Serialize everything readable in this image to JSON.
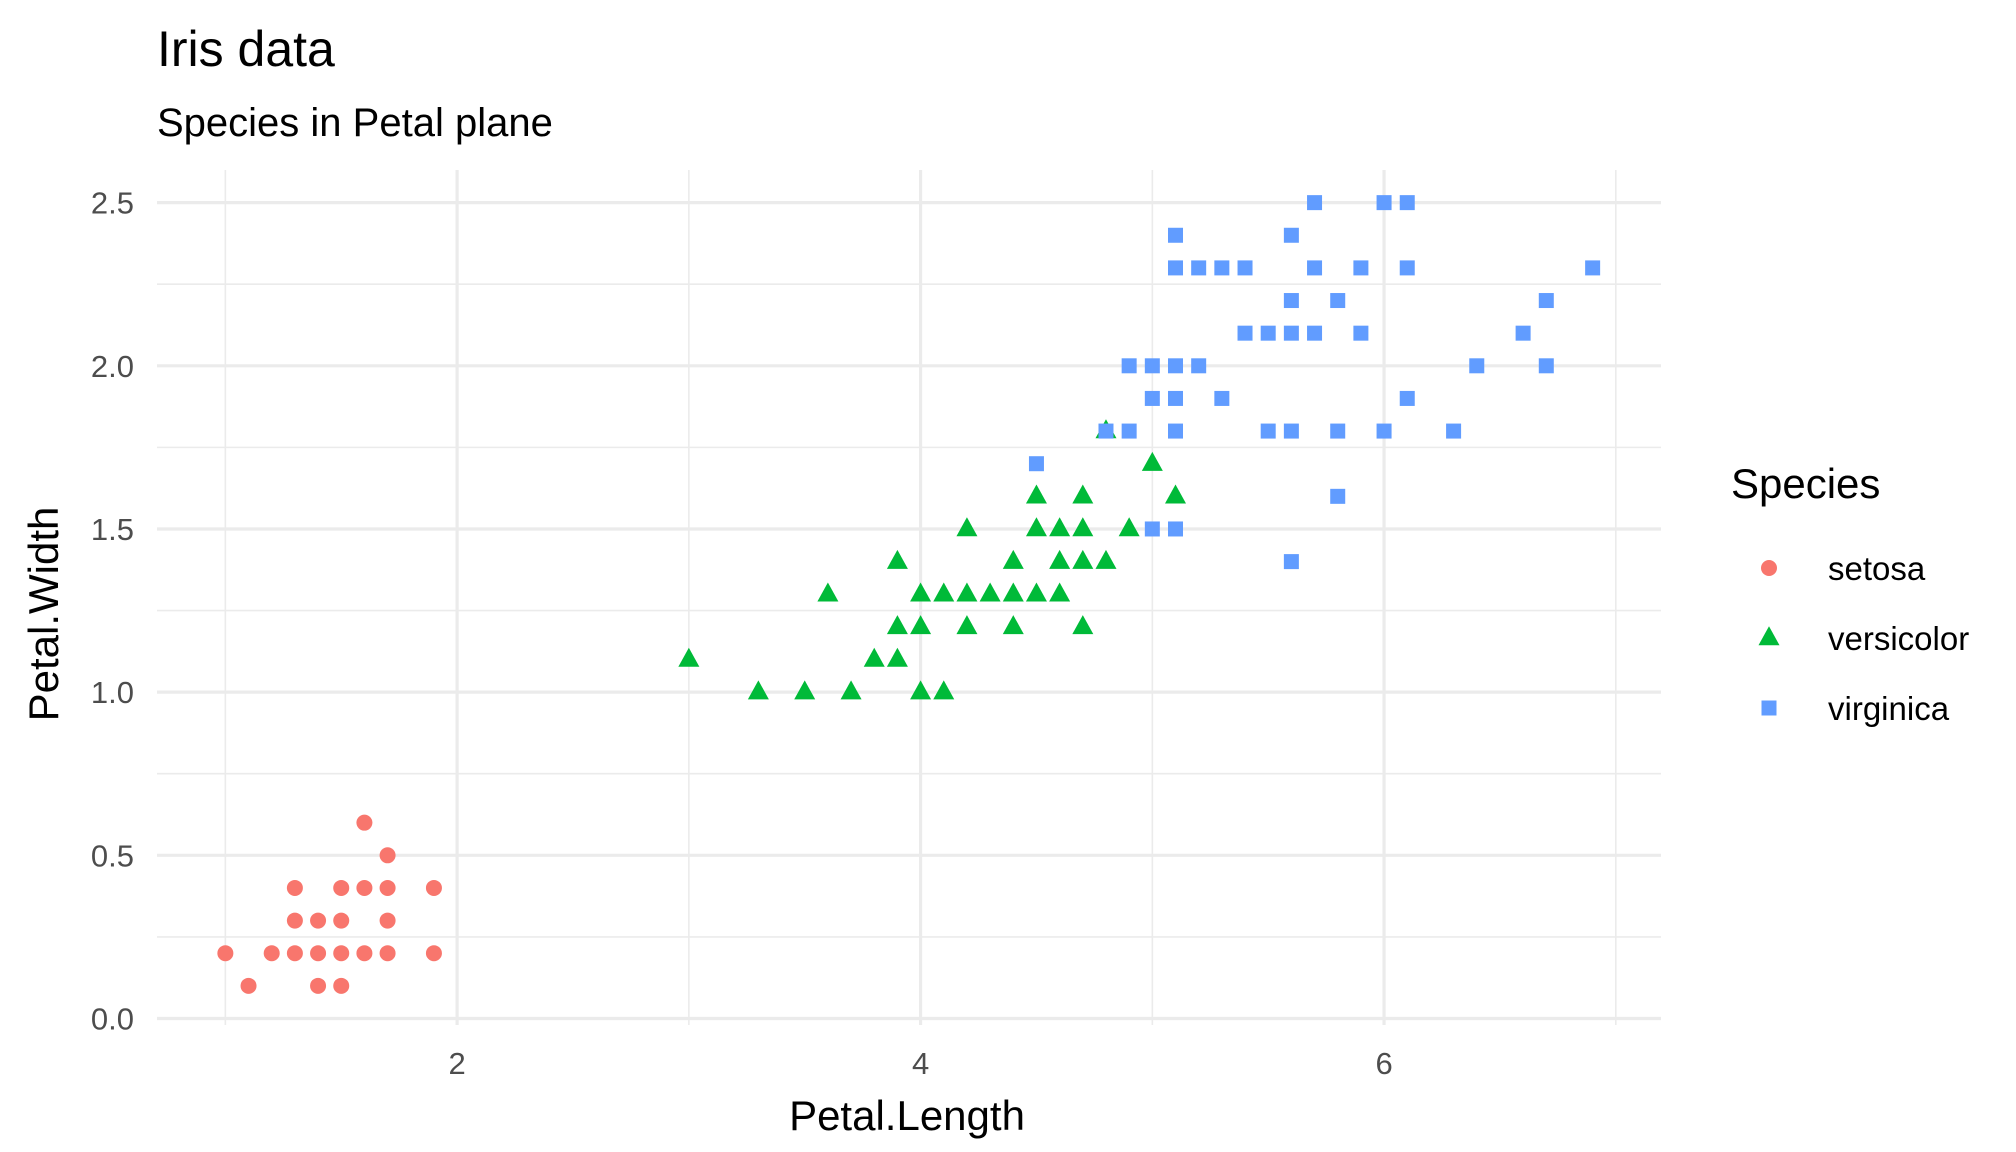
{
  "chart_data": {
    "type": "scatter",
    "title": "Iris data",
    "subtitle": "Species in Petal plane",
    "xlabel": "Petal.Length",
    "ylabel": "Petal.Width",
    "xlim": [
      0.705,
      7.195
    ],
    "ylim": [
      -0.02,
      2.6
    ],
    "x_ticks": [
      2,
      4,
      6
    ],
    "x_tick_labels": [
      "2",
      "4",
      "6"
    ],
    "y_ticks": [
      0.0,
      0.5,
      1.0,
      1.5,
      2.0,
      2.5
    ],
    "y_tick_labels": [
      "0.0",
      "0.5",
      "1.0",
      "1.5",
      "2.0",
      "2.5"
    ],
    "grid": true,
    "legend": {
      "title": "Species",
      "position": "right",
      "entries": [
        "setosa",
        "versicolor",
        "virginica"
      ]
    },
    "series": [
      {
        "name": "setosa",
        "shape": "circle",
        "color": "#F8766D",
        "points": [
          [
            1.0,
            0.2
          ],
          [
            1.1,
            0.1
          ],
          [
            1.2,
            0.2
          ],
          [
            1.3,
            0.2
          ],
          [
            1.3,
            0.3
          ],
          [
            1.3,
            0.4
          ],
          [
            1.4,
            0.1
          ],
          [
            1.4,
            0.2
          ],
          [
            1.4,
            0.3
          ],
          [
            1.5,
            0.1
          ],
          [
            1.5,
            0.2
          ],
          [
            1.5,
            0.3
          ],
          [
            1.5,
            0.4
          ],
          [
            1.6,
            0.2
          ],
          [
            1.6,
            0.4
          ],
          [
            1.6,
            0.6
          ],
          [
            1.7,
            0.2
          ],
          [
            1.7,
            0.3
          ],
          [
            1.7,
            0.4
          ],
          [
            1.7,
            0.5
          ],
          [
            1.9,
            0.2
          ],
          [
            1.9,
            0.4
          ]
        ]
      },
      {
        "name": "versicolor",
        "shape": "triangle",
        "color": "#00BA38",
        "points": [
          [
            3.0,
            1.1
          ],
          [
            3.3,
            1.0
          ],
          [
            3.5,
            1.0
          ],
          [
            3.6,
            1.3
          ],
          [
            3.7,
            1.0
          ],
          [
            3.8,
            1.1
          ],
          [
            3.9,
            1.1
          ],
          [
            3.9,
            1.2
          ],
          [
            3.9,
            1.4
          ],
          [
            4.0,
            1.0
          ],
          [
            4.0,
            1.2
          ],
          [
            4.0,
            1.3
          ],
          [
            4.1,
            1.0
          ],
          [
            4.1,
            1.3
          ],
          [
            4.2,
            1.2
          ],
          [
            4.2,
            1.3
          ],
          [
            4.2,
            1.5
          ],
          [
            4.3,
            1.3
          ],
          [
            4.4,
            1.2
          ],
          [
            4.4,
            1.3
          ],
          [
            4.4,
            1.4
          ],
          [
            4.5,
            1.3
          ],
          [
            4.5,
            1.5
          ],
          [
            4.5,
            1.6
          ],
          [
            4.6,
            1.3
          ],
          [
            4.6,
            1.4
          ],
          [
            4.6,
            1.5
          ],
          [
            4.7,
            1.2
          ],
          [
            4.7,
            1.4
          ],
          [
            4.7,
            1.5
          ],
          [
            4.7,
            1.6
          ],
          [
            4.8,
            1.4
          ],
          [
            4.8,
            1.8
          ],
          [
            4.9,
            1.5
          ],
          [
            5.0,
            1.7
          ],
          [
            5.1,
            1.6
          ]
        ]
      },
      {
        "name": "virginica",
        "shape": "square",
        "color": "#619CFF",
        "points": [
          [
            4.5,
            1.7
          ],
          [
            4.8,
            1.8
          ],
          [
            4.9,
            1.8
          ],
          [
            4.9,
            2.0
          ],
          [
            5.0,
            1.5
          ],
          [
            5.0,
            1.9
          ],
          [
            5.0,
            2.0
          ],
          [
            5.1,
            1.5
          ],
          [
            5.1,
            1.8
          ],
          [
            5.1,
            1.9
          ],
          [
            5.1,
            2.0
          ],
          [
            5.1,
            2.3
          ],
          [
            5.1,
            2.4
          ],
          [
            5.2,
            2.0
          ],
          [
            5.2,
            2.3
          ],
          [
            5.3,
            1.9
          ],
          [
            5.3,
            2.3
          ],
          [
            5.4,
            2.1
          ],
          [
            5.4,
            2.3
          ],
          [
            5.5,
            1.8
          ],
          [
            5.5,
            2.1
          ],
          [
            5.6,
            1.4
          ],
          [
            5.6,
            1.8
          ],
          [
            5.6,
            2.1
          ],
          [
            5.6,
            2.2
          ],
          [
            5.6,
            2.4
          ],
          [
            5.7,
            2.1
          ],
          [
            5.7,
            2.3
          ],
          [
            5.7,
            2.5
          ],
          [
            5.8,
            1.6
          ],
          [
            5.8,
            1.8
          ],
          [
            5.8,
            2.2
          ],
          [
            5.9,
            2.1
          ],
          [
            5.9,
            2.3
          ],
          [
            6.0,
            1.8
          ],
          [
            6.0,
            2.5
          ],
          [
            6.1,
            1.9
          ],
          [
            6.1,
            2.3
          ],
          [
            6.1,
            2.5
          ],
          [
            6.3,
            1.8
          ],
          [
            6.4,
            2.0
          ],
          [
            6.6,
            2.1
          ],
          [
            6.7,
            2.0
          ],
          [
            6.7,
            2.2
          ],
          [
            6.9,
            2.3
          ]
        ]
      }
    ]
  }
}
